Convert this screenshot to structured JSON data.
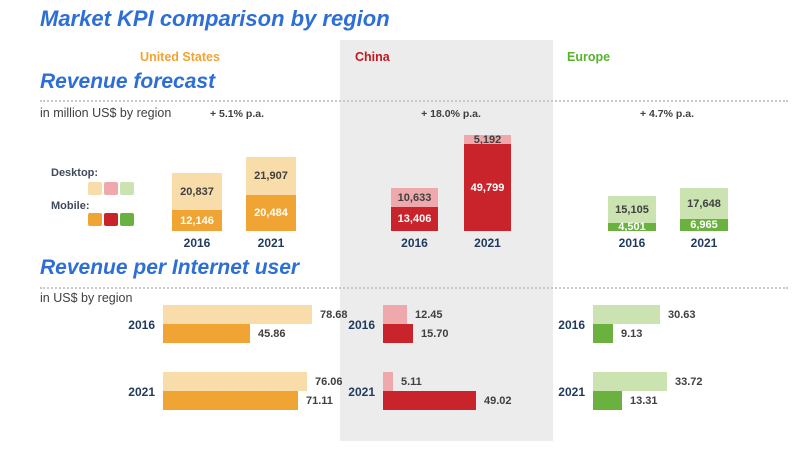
{
  "title": "Market KPI comparison by region",
  "regions": [
    {
      "label": "United States",
      "header_color": "#F0A433",
      "color": "#F0A433",
      "light_color": "#F8DCA9"
    },
    {
      "label": "China",
      "header_color": "#C2181E",
      "color": "#C9242B",
      "light_color": "#EFA9AD"
    },
    {
      "label": "Europe",
      "header_color": "#56B32E",
      "color": "#6AB13F",
      "light_color": "#CBE2B1"
    }
  ],
  "legend": {
    "desktop_label": "Desktop:",
    "mobile_label": "Mobile:"
  },
  "sections": [
    {
      "heading": "Revenue forecast",
      "caption": "in million US$ by region"
    },
    {
      "heading": "Revenue per Internet user",
      "caption": "in US$ by region"
    }
  ],
  "colors": {
    "heading_blue": "#2D6FD6",
    "year_navy": "#1F3A5C",
    "text_gray": "#404040",
    "panel_gray": "#ECECEC",
    "dotted_line": "#C9C9C9",
    "white": "#FFFFFF"
  },
  "chart_data": [
    {
      "type": "bar",
      "variant": "stacked-vertical",
      "title": "Revenue forecast",
      "subtitle": "in million US$ by region",
      "unit": "million US$",
      "categories": [
        "2016",
        "2021"
      ],
      "legend": [
        "Desktop",
        "Mobile"
      ],
      "regions": [
        {
          "name": "United States",
          "growth_label": "+ 5.1% p.a.",
          "series": [
            {
              "name": "Desktop",
              "values": [
                20837,
                21907
              ]
            },
            {
              "name": "Mobile",
              "values": [
                12146,
                20484
              ]
            }
          ]
        },
        {
          "name": "China",
          "growth_label": "+ 18.0% p.a.",
          "series": [
            {
              "name": "Desktop",
              "values": [
                10633,
                5192
              ]
            },
            {
              "name": "Mobile",
              "values": [
                13406,
                49799
              ]
            }
          ]
        },
        {
          "name": "Europe",
          "growth_label": "+ 4.7% p.a.",
          "series": [
            {
              "name": "Desktop",
              "values": [
                15105,
                17648
              ]
            },
            {
              "name": "Mobile",
              "values": [
                4501,
                6965
              ]
            }
          ]
        }
      ]
    },
    {
      "type": "bar",
      "variant": "horizontal",
      "title": "Revenue per Internet user",
      "subtitle": "in US$ by region",
      "unit": "US$",
      "categories": [
        "2016",
        "2021"
      ],
      "legend": [
        "Desktop",
        "Mobile"
      ],
      "regions": [
        {
          "name": "United States",
          "series": [
            {
              "name": "Desktop",
              "values": [
                78.68,
                76.06
              ]
            },
            {
              "name": "Mobile",
              "values": [
                45.86,
                71.11
              ]
            }
          ]
        },
        {
          "name": "China",
          "series": [
            {
              "name": "Desktop",
              "values": [
                12.45,
                5.11
              ]
            },
            {
              "name": "Mobile",
              "values": [
                15.7,
                49.02
              ]
            }
          ]
        },
        {
          "name": "Europe",
          "series": [
            {
              "name": "Desktop",
              "values": [
                30.63,
                33.72
              ]
            },
            {
              "name": "Mobile",
              "values": [
                9.13,
                13.31
              ]
            }
          ]
        }
      ]
    }
  ]
}
